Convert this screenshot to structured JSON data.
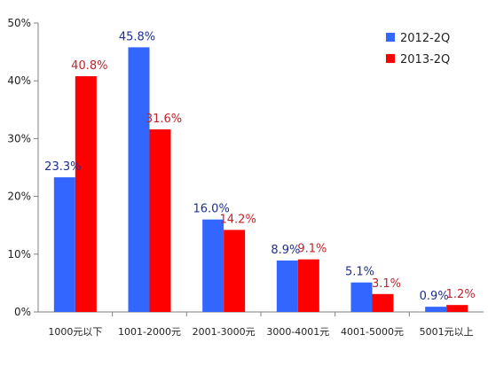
{
  "chart_data": {
    "type": "bar",
    "categories": [
      "1000元以下",
      "1001-2000元",
      "2001-3000元",
      "3000-4001元",
      "4001-5000元",
      "5001元以上"
    ],
    "series": [
      {
        "name": "2012-2Q",
        "color": "#3366FF",
        "label_color": "#1F2F8F",
        "values": [
          23.3,
          45.8,
          16.0,
          8.9,
          5.1,
          0.9
        ]
      },
      {
        "name": "2013-2Q",
        "color": "#FF0000",
        "label_color": "#C0242B",
        "values": [
          40.8,
          31.6,
          14.2,
          9.1,
          3.1,
          1.2
        ]
      }
    ],
    "data_labels": [
      [
        "23.3%",
        "45.8%",
        "16.0%",
        "8.9%",
        "5.1%",
        "0.9%"
      ],
      [
        "40.8%",
        "31.6%",
        "14.2%",
        "9.1%",
        "3.1%",
        "1.2%"
      ]
    ],
    "y_ticks": [
      "0%",
      "10%",
      "20%",
      "30%",
      "40%",
      "50%"
    ],
    "ylim": [
      0,
      50
    ],
    "grid": false,
    "legend_position": "top-right"
  }
}
